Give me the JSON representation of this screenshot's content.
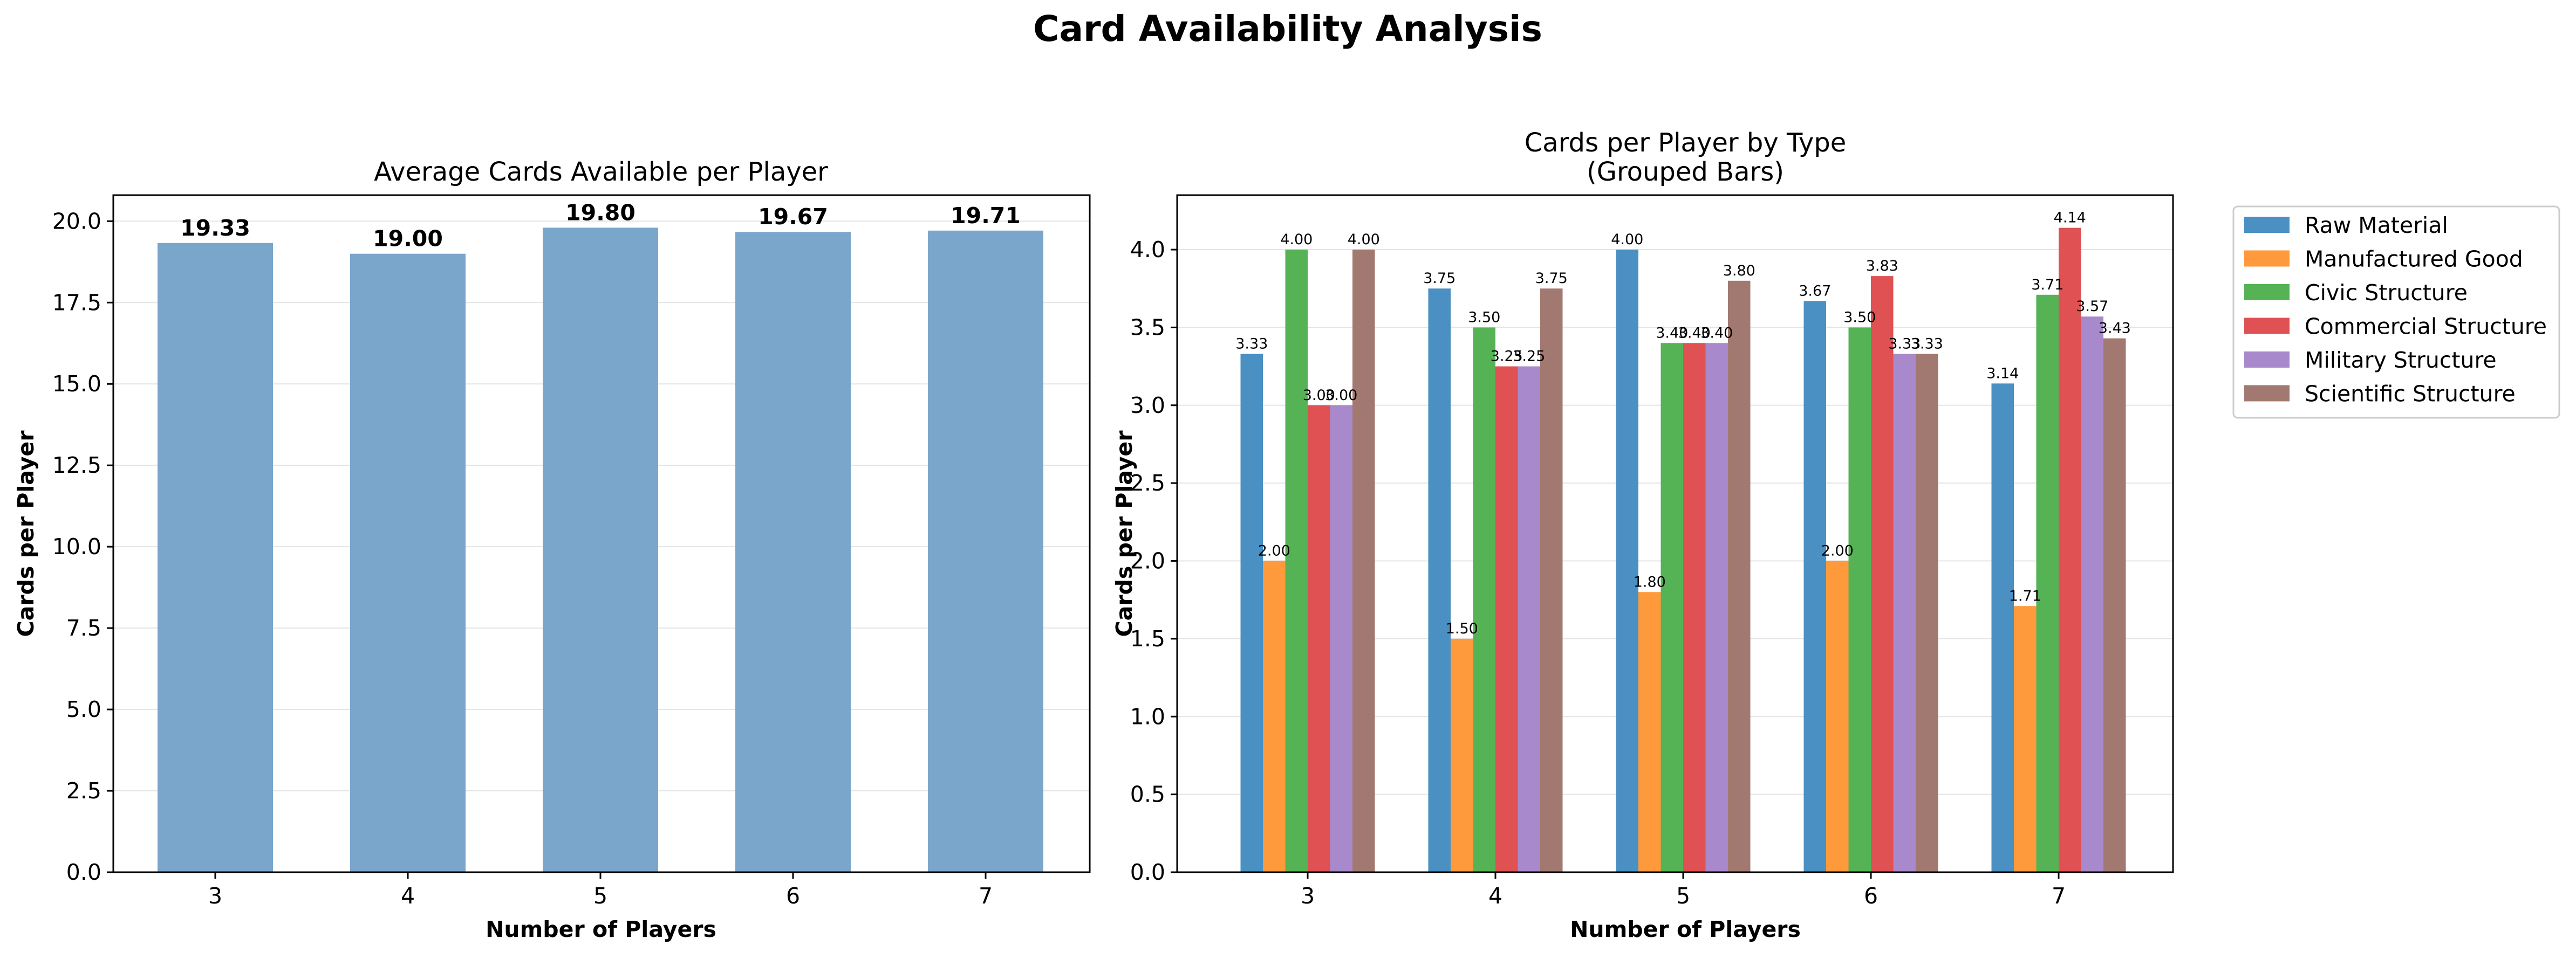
{
  "figure": {
    "title": "Card Availability Analysis"
  },
  "chart_data": [
    {
      "type": "bar",
      "title": "Average Cards Available per Player",
      "xlabel": "Number of Players",
      "ylabel": "Cards per Player",
      "categories": [
        "3",
        "4",
        "5",
        "6",
        "7"
      ],
      "values": [
        19.33,
        19.0,
        19.8,
        19.67,
        19.71
      ],
      "value_labels": [
        "19.33",
        "19.00",
        "19.80",
        "19.67",
        "19.71"
      ],
      "ylim": [
        0,
        20.8
      ],
      "yticks": [
        "0.0",
        "2.5",
        "5.0",
        "7.5",
        "10.0",
        "12.5",
        "15.0",
        "17.5",
        "20.0"
      ],
      "grid": "y",
      "color": "#7ba6cb"
    },
    {
      "type": "bar",
      "title": "Cards per Player by Type",
      "subtitle": "(Grouped Bars)",
      "xlabel": "Number of Players",
      "ylabel": "Cards per Player",
      "categories": [
        "3",
        "4",
        "5",
        "6",
        "7"
      ],
      "ylim": [
        0,
        4.35
      ],
      "yticks": [
        "0.0",
        "0.5",
        "1.0",
        "1.5",
        "2.0",
        "2.5",
        "3.0",
        "3.5",
        "4.0"
      ],
      "grid": "y",
      "legend_placement": "outside right",
      "series": [
        {
          "name": "Raw Material",
          "color": "#4a90c2",
          "values": [
            3.33,
            3.75,
            4.0,
            3.67,
            3.14
          ],
          "labels": [
            "3.33",
            "3.75",
            "4.00",
            "3.67",
            "3.14"
          ]
        },
        {
          "name": "Manufactured Good",
          "color": "#ff9a3c",
          "values": [
            2.0,
            1.5,
            1.8,
            2.0,
            1.71
          ],
          "labels": [
            "2.00",
            "1.50",
            "1.80",
            "2.00",
            "1.71"
          ]
        },
        {
          "name": "Civic Structure",
          "color": "#55b355",
          "values": [
            4.0,
            3.5,
            3.4,
            3.5,
            3.71
          ],
          "labels": [
            "4.00",
            "3.50",
            "3.40",
            "3.50",
            "3.71"
          ]
        },
        {
          "name": "Commercial Structure",
          "color": "#df5152",
          "values": [
            3.0,
            3.25,
            3.4,
            3.83,
            4.14
          ],
          "labels": [
            "3.00",
            "3.25",
            "3.40",
            "3.83",
            "4.14"
          ]
        },
        {
          "name": "Military Structure",
          "color": "#a889cb",
          "values": [
            3.0,
            3.25,
            3.4,
            3.33,
            3.57
          ],
          "labels": [
            "3.00",
            "3.25",
            "3.40",
            "3.33",
            "3.57"
          ]
        },
        {
          "name": "Scientific Structure",
          "color": "#a27970",
          "values": [
            4.0,
            3.75,
            3.8,
            3.33,
            3.43
          ],
          "labels": [
            "4.00",
            "3.75",
            "3.80",
            "3.33",
            "3.43"
          ]
        }
      ]
    }
  ]
}
